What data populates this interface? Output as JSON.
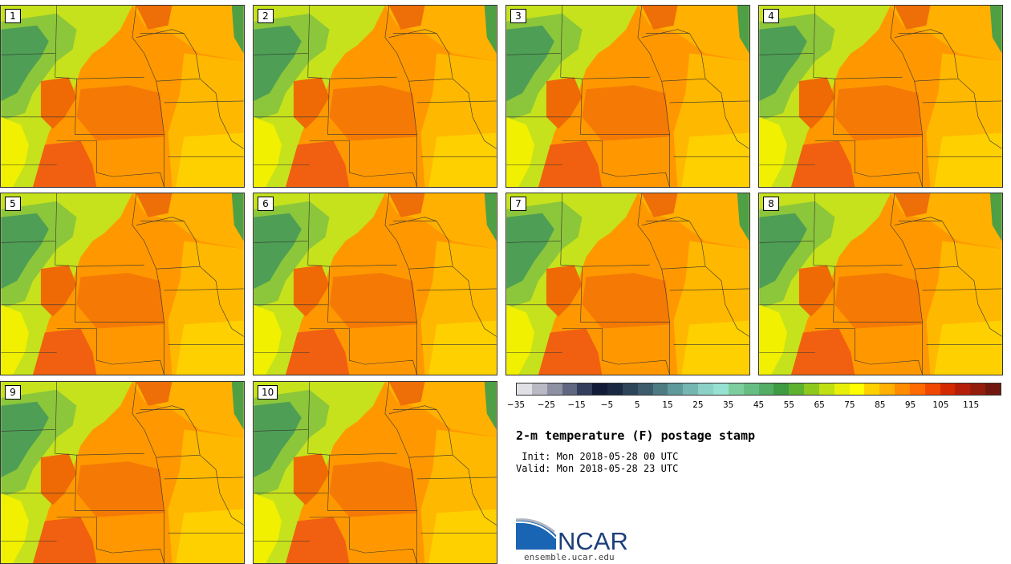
{
  "panels": [
    {
      "label": "1"
    },
    {
      "label": "2"
    },
    {
      "label": "3"
    },
    {
      "label": "4"
    },
    {
      "label": "5"
    },
    {
      "label": "6"
    },
    {
      "label": "7"
    },
    {
      "label": "8"
    },
    {
      "label": "9"
    },
    {
      "label": "10"
    }
  ],
  "colorbar": {
    "colors": [
      "#e0e0e6",
      "#b9b9c3",
      "#8e91a3",
      "#5f6781",
      "#333d5c",
      "#121b37",
      "#1b2842",
      "#2c4559",
      "#3d5c6c",
      "#4d7b84",
      "#5e999c",
      "#74b6b2",
      "#8bd1c7",
      "#96e2d2",
      "#7dcd9e",
      "#67be84",
      "#52ad65",
      "#3f9b41",
      "#5eb12f",
      "#8ec81d",
      "#bfe012",
      "#e8f00a",
      "#ffff00",
      "#ffd000",
      "#ffb000",
      "#ff8c00",
      "#ff6a00",
      "#f04800",
      "#d42a00",
      "#b51f0a",
      "#941c0c",
      "#701810"
    ],
    "ticks": [
      "−35",
      "−25",
      "−15",
      "−5",
      "5",
      "15",
      "25",
      "35",
      "45",
      "55",
      "65",
      "75",
      "85",
      "95",
      "105",
      "115"
    ],
    "tick_values": [
      -35,
      -25,
      -15,
      -5,
      5,
      15,
      25,
      35,
      45,
      55,
      65,
      75,
      85,
      95,
      105,
      115
    ],
    "range": [
      -35,
      125
    ]
  },
  "title": "2-m temperature (F) postage stamp",
  "init_text": " Init: Mon 2018-05-28 00 UTC",
  "valid_text": "Valid: Mon 2018-05-28 23 UTC",
  "logo_text": "NCAR",
  "site": "ensemble.ucar.edu"
}
